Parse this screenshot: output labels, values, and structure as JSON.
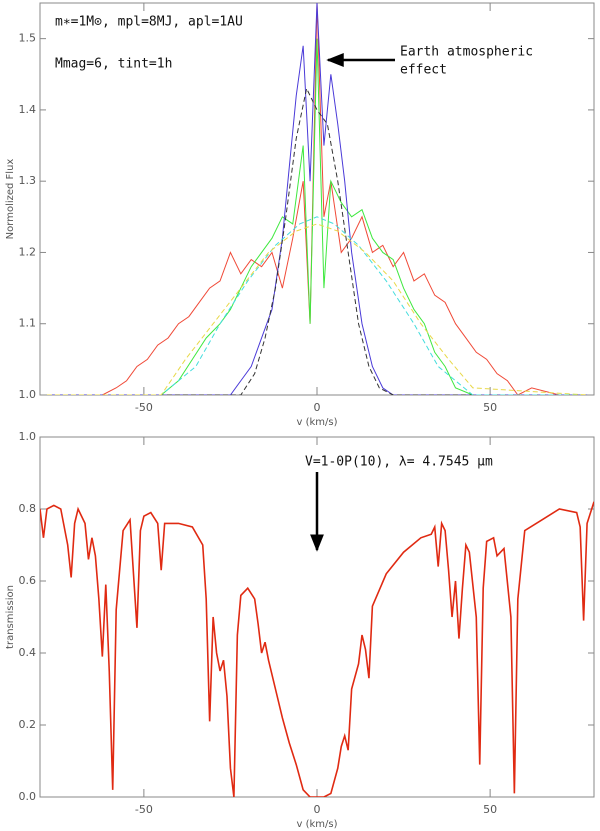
{
  "chart_data": [
    {
      "type": "line",
      "xlabel": "v (km/s)",
      "ylabel": "Normolized Flux",
      "xlim": [
        -80,
        80
      ],
      "ylim": [
        1.0,
        1.55
      ],
      "xticks": [
        -50,
        0,
        50
      ],
      "yticks": [
        {
          "value": 1.0,
          "label": "1.0"
        },
        1.1,
        1.2,
        1.3,
        1.4,
        1.5
      ],
      "annotations": [
        "m∗=1M⊙, mpl=8MJ, apl=1AU",
        "Mmag=6, tint=1h",
        "Earth atmospheric",
        "effect"
      ],
      "series": [
        {
          "color": "#f04a38",
          "linestyle": "solid",
          "x": [
            -78,
            -70,
            -62,
            -58,
            -55,
            -52,
            -49,
            -46,
            -43,
            -40,
            -37,
            -34,
            -31,
            -28,
            -25,
            -22,
            -19,
            -16,
            -13,
            -10,
            -7,
            -4,
            -2,
            0,
            2,
            4,
            7,
            10,
            13,
            16,
            19,
            22,
            25,
            28,
            31,
            34,
            37,
            40,
            43,
            46,
            49,
            52,
            55,
            58,
            62,
            70,
            78
          ],
          "values": [
            1.0,
            1.0,
            1.0,
            1.01,
            1.02,
            1.04,
            1.05,
            1.07,
            1.08,
            1.1,
            1.11,
            1.13,
            1.15,
            1.16,
            1.2,
            1.17,
            1.19,
            1.18,
            1.2,
            1.15,
            1.22,
            1.3,
            1.1,
            1.55,
            1.25,
            1.3,
            1.2,
            1.22,
            1.25,
            1.2,
            1.21,
            1.18,
            1.2,
            1.16,
            1.17,
            1.14,
            1.13,
            1.1,
            1.08,
            1.06,
            1.05,
            1.03,
            1.02,
            1.0,
            1.01,
            1.0,
            1.0
          ]
        },
        {
          "color": "#3fe83f",
          "linestyle": "solid",
          "x": [
            -78,
            -60,
            -45,
            -40,
            -36,
            -32,
            -28,
            -25,
            -22,
            -19,
            -16,
            -13,
            -10,
            -7,
            -4,
            -2,
            0,
            2,
            4,
            7,
            10,
            13,
            16,
            19,
            22,
            25,
            28,
            31,
            34,
            37,
            40,
            45,
            60,
            78
          ],
          "values": [
            1.0,
            1.0,
            1.0,
            1.02,
            1.05,
            1.08,
            1.1,
            1.12,
            1.15,
            1.18,
            1.2,
            1.22,
            1.25,
            1.24,
            1.35,
            1.1,
            1.5,
            1.15,
            1.3,
            1.27,
            1.25,
            1.26,
            1.22,
            1.2,
            1.19,
            1.15,
            1.12,
            1.1,
            1.06,
            1.04,
            1.01,
            1.0,
            1.0,
            1.0
          ]
        },
        {
          "color": "#4a3ad8",
          "linestyle": "solid",
          "x": [
            -78,
            -40,
            -25,
            -22,
            -19,
            -16,
            -13,
            -10,
            -8,
            -6,
            -4,
            -2,
            0,
            2,
            4,
            6,
            8,
            10,
            13,
            16,
            19,
            22,
            40,
            78
          ],
          "values": [
            1.0,
            1.0,
            1.0,
            1.02,
            1.04,
            1.08,
            1.12,
            1.22,
            1.32,
            1.42,
            1.49,
            1.3,
            1.55,
            1.35,
            1.45,
            1.38,
            1.3,
            1.2,
            1.1,
            1.04,
            1.01,
            1.0,
            1.0,
            1.0
          ]
        },
        {
          "color": "#333333",
          "linestyle": "dashed",
          "x": [
            -78,
            -22,
            -18,
            -15,
            -12,
            -9,
            -6,
            -3,
            0,
            3,
            6,
            9,
            12,
            15,
            18,
            22,
            78
          ],
          "values": [
            1.0,
            1.0,
            1.03,
            1.08,
            1.15,
            1.25,
            1.36,
            1.43,
            1.4,
            1.38,
            1.3,
            1.2,
            1.1,
            1.04,
            1.01,
            1.0,
            1.0
          ]
        },
        {
          "color": "#44dddd",
          "linestyle": "dashed",
          "x": [
            -78,
            -45,
            -35,
            -28,
            -20,
            -12,
            -5,
            0,
            5,
            12,
            20,
            28,
            35,
            45,
            78
          ],
          "values": [
            1.0,
            1.0,
            1.04,
            1.1,
            1.16,
            1.21,
            1.24,
            1.25,
            1.24,
            1.21,
            1.16,
            1.1,
            1.04,
            1.0,
            1.0
          ]
        },
        {
          "color": "#e8d848",
          "linestyle": "dashed",
          "x": [
            -78,
            -45,
            -38,
            -30,
            -22,
            -14,
            -6,
            0,
            6,
            14,
            22,
            30,
            38,
            45,
            78
          ],
          "values": [
            1.0,
            1.0,
            1.05,
            1.1,
            1.15,
            1.2,
            1.23,
            1.24,
            1.23,
            1.2,
            1.16,
            1.1,
            1.05,
            1.01,
            1.0
          ]
        }
      ]
    },
    {
      "type": "line",
      "xlabel": "v (km/s)",
      "ylabel": "transmission",
      "xlim": [
        -80,
        80
      ],
      "ylim": [
        0,
        1
      ],
      "xticks": [
        -50,
        0,
        50
      ],
      "yticks": [
        {
          "value": 0,
          "label": "0.0"
        },
        0.2,
        0.4,
        0.6,
        0.8,
        {
          "value": 1,
          "label": "1.0"
        }
      ],
      "annotations": [
        "V=1-0P(10), λ= 4.7545 μm"
      ],
      "series": [
        {
          "color": "#e02a12",
          "linestyle": "solid",
          "x": [
            -80,
            -79,
            -78,
            -76,
            -74,
            -72,
            -71,
            -70,
            -69,
            -67,
            -66,
            -65,
            -64,
            -63,
            -62,
            -61,
            -60,
            -59,
            -58,
            -56,
            -54,
            -53,
            -52,
            -51,
            -50,
            -48,
            -46,
            -45,
            -44,
            -42,
            -40,
            -36,
            -33,
            -32,
            -31,
            -30,
            -29,
            -28,
            -27,
            -26,
            -25,
            -24,
            -23,
            -22,
            -20,
            -18,
            -17,
            -16,
            -15,
            -14,
            -12,
            -10,
            -8,
            -6,
            -4,
            -2,
            0,
            2,
            4,
            6,
            7,
            8,
            9,
            10,
            12,
            13,
            14,
            15,
            16,
            20,
            25,
            30,
            33,
            34,
            35,
            36,
            37,
            38,
            39,
            40,
            41,
            42,
            43,
            44,
            46,
            47,
            48,
            49,
            51,
            52,
            54,
            56,
            57,
            58,
            60,
            65,
            70,
            75,
            76,
            77,
            78,
            80
          ],
          "values": [
            0.8,
            0.72,
            0.8,
            0.81,
            0.8,
            0.7,
            0.61,
            0.76,
            0.8,
            0.76,
            0.66,
            0.72,
            0.67,
            0.55,
            0.39,
            0.59,
            0.35,
            0.02,
            0.52,
            0.74,
            0.77,
            0.62,
            0.47,
            0.74,
            0.78,
            0.79,
            0.76,
            0.63,
            0.76,
            0.76,
            0.76,
            0.75,
            0.7,
            0.55,
            0.21,
            0.5,
            0.4,
            0.35,
            0.38,
            0.28,
            0.08,
            0.0,
            0.45,
            0.56,
            0.58,
            0.55,
            0.48,
            0.4,
            0.43,
            0.38,
            0.3,
            0.22,
            0.15,
            0.09,
            0.02,
            0.0,
            0.0,
            0.0,
            0.01,
            0.08,
            0.14,
            0.17,
            0.13,
            0.3,
            0.37,
            0.45,
            0.41,
            0.33,
            0.53,
            0.62,
            0.68,
            0.72,
            0.73,
            0.75,
            0.64,
            0.76,
            0.74,
            0.63,
            0.5,
            0.6,
            0.44,
            0.58,
            0.7,
            0.68,
            0.5,
            0.09,
            0.58,
            0.71,
            0.72,
            0.67,
            0.69,
            0.5,
            0.01,
            0.55,
            0.74,
            0.77,
            0.8,
            0.79,
            0.75,
            0.49,
            0.76,
            0.82
          ]
        }
      ]
    }
  ]
}
